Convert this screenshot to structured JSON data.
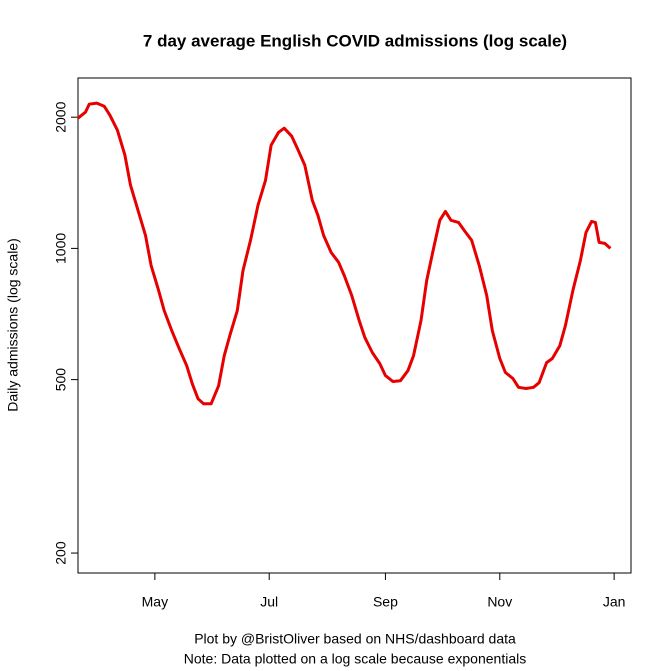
{
  "chart_data": {
    "type": "line",
    "title": "7 day average English COVID admissions (log scale)",
    "ylabel": "Daily admissions (log scale)",
    "caption": [
      "Plot by @BristOliver based on NHS/dashboard data",
      "Note: Data plotted on a log scale because exponentials"
    ],
    "log_y": true,
    "color": "#e60000",
    "xlim": [
      80,
      375
    ],
    "xticks": [
      {
        "value": 121,
        "label": "May"
      },
      {
        "value": 182,
        "label": "Jul"
      },
      {
        "value": 244,
        "label": "Sep"
      },
      {
        "value": 305,
        "label": "Nov"
      },
      {
        "value": 366,
        "label": "Jan"
      }
    ],
    "ylim": [
      180,
      2460
    ],
    "yticks": [
      200,
      500,
      1000,
      2000
    ],
    "x": [
      80,
      84,
      86,
      90,
      94,
      97,
      101,
      105,
      108,
      112,
      116,
      119,
      123,
      126,
      130,
      134,
      138,
      141,
      144,
      147,
      151,
      155,
      158,
      161,
      165,
      168,
      172,
      176,
      180,
      183,
      187,
      190,
      194,
      197,
      201,
      205,
      208,
      211,
      215,
      219,
      222,
      226,
      230,
      233,
      237,
      241,
      244,
      248,
      252,
      256,
      259,
      263,
      266,
      270,
      273,
      276,
      279,
      283,
      286,
      290,
      294,
      298,
      301,
      305,
      308,
      312,
      315,
      319,
      323,
      326,
      330,
      333,
      337,
      340,
      344,
      348,
      351,
      354,
      356,
      358,
      361,
      364
    ],
    "values": [
      1989,
      2054,
      2142,
      2154,
      2120,
      2021,
      1867,
      1636,
      1396,
      1223,
      1071,
      914,
      801,
      720,
      648,
      589,
      538,
      489,
      452,
      440,
      440,
      484,
      567,
      631,
      720,
      890,
      1043,
      1256,
      1433,
      1724,
      1847,
      1887,
      1809,
      1697,
      1552,
      1289,
      1191,
      1071,
      979,
      929,
      867,
      780,
      683,
      625,
      577,
      544,
      511,
      495,
      497,
      524,
      567,
      683,
      844,
      1016,
      1160,
      1216,
      1160,
      1147,
      1100,
      1043,
      914,
      780,
      648,
      559,
      519,
      503,
      480,
      477,
      480,
      492,
      547,
      559,
      598,
      665,
      801,
      938,
      1088,
      1153,
      1147,
      1032,
      1027,
      1000
    ]
  }
}
